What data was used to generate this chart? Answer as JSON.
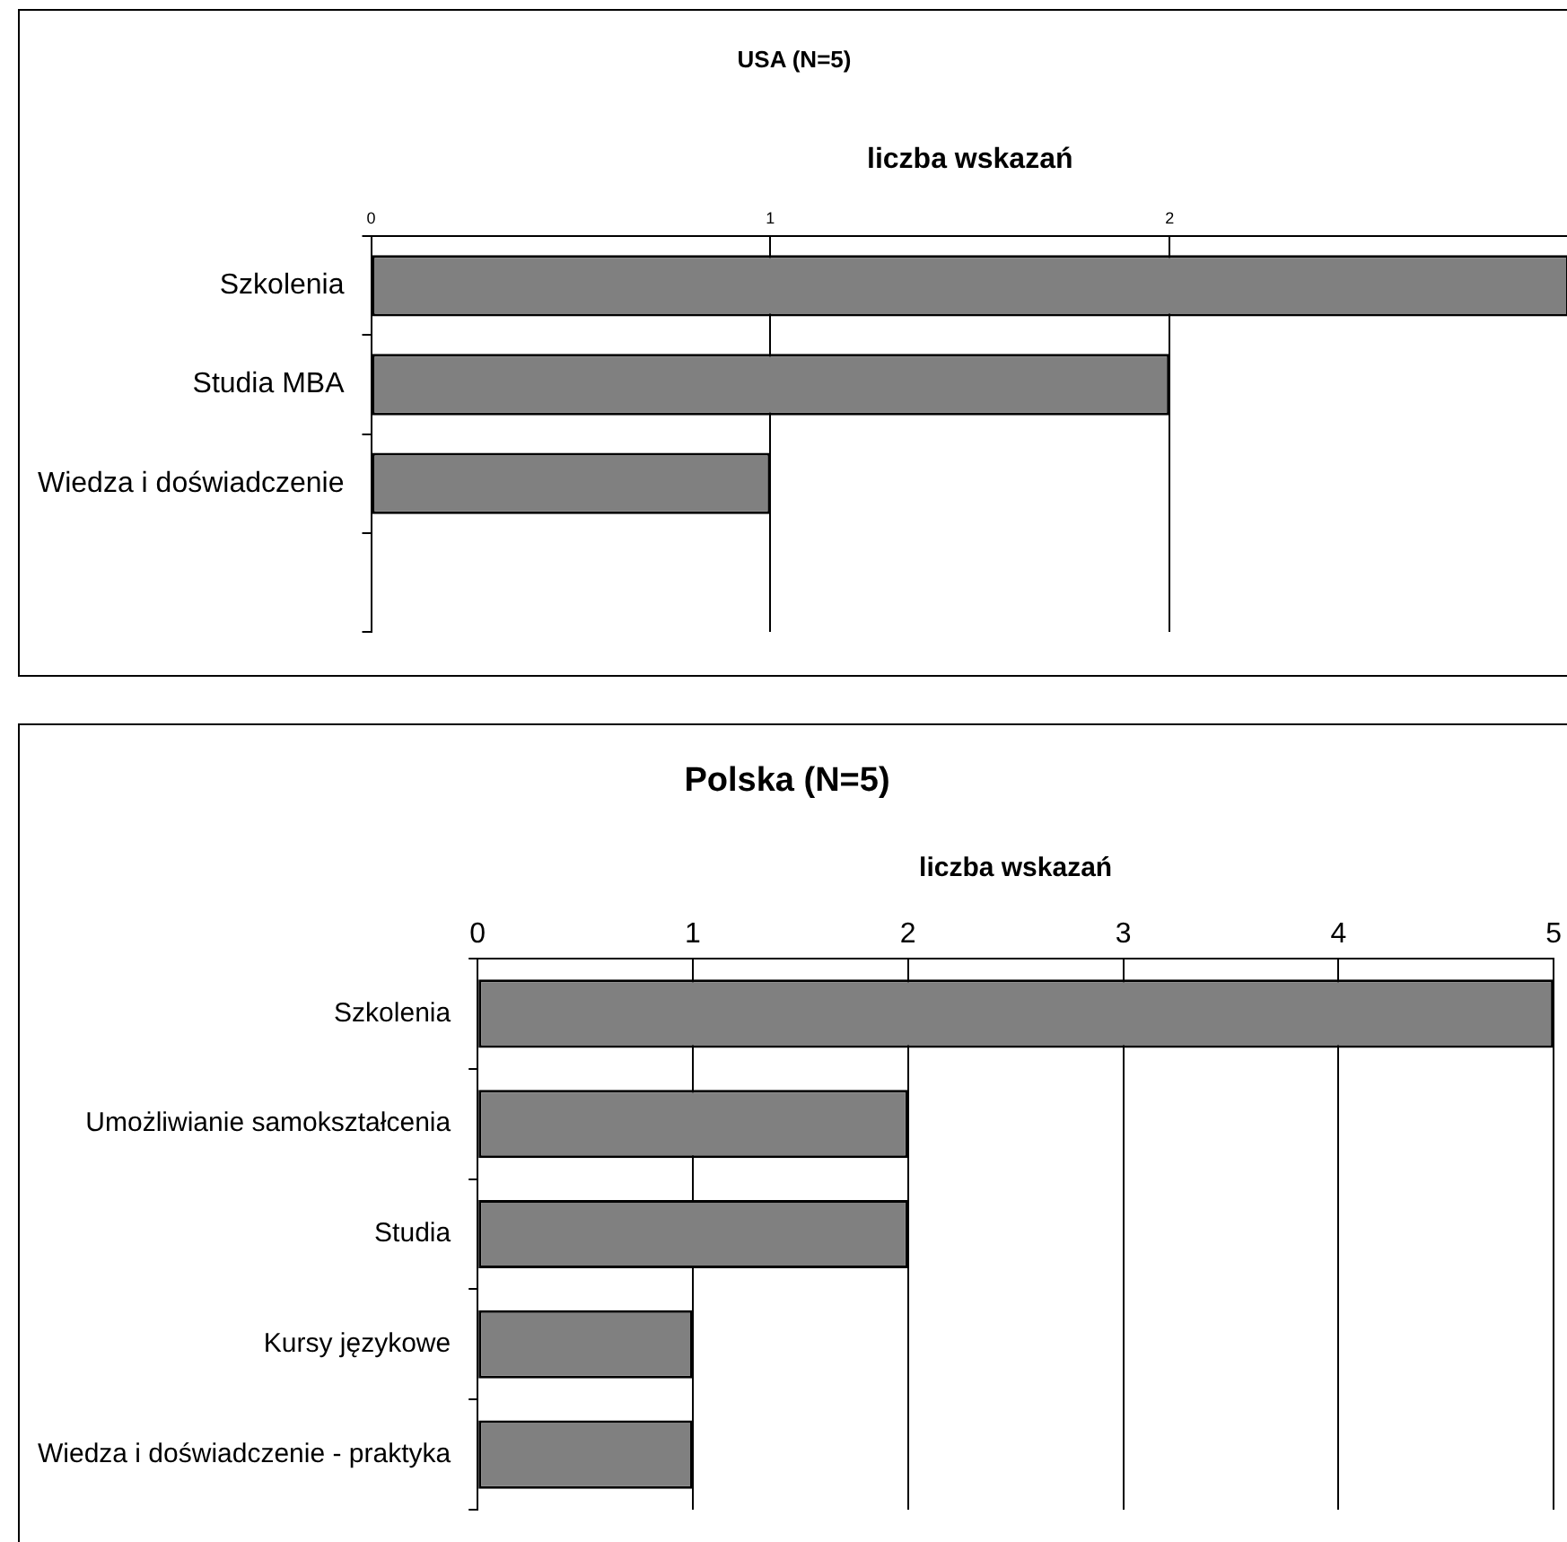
{
  "chart_data": [
    {
      "type": "bar",
      "orientation": "horizontal",
      "title": "USA (N=5)",
      "xlabel": "liczba wskazań",
      "categories": [
        "Szkolenia",
        "Studia MBA",
        "Wiedza i doświadczenie",
        null
      ],
      "values": [
        3,
        2,
        1,
        null
      ],
      "color": "#808080",
      "xlim": [
        0,
        3
      ],
      "xticks": [
        0,
        1,
        2
      ],
      "grid": "x",
      "legend": false
    },
    {
      "type": "bar",
      "orientation": "horizontal",
      "title": "Polska (N=5)",
      "xlabel": "liczba wskazań",
      "categories": [
        "Szkolenia",
        "Umożliwianie samokształcenia",
        "Studia",
        "Kursy językowe",
        "Wiedza i doświadczenie - praktyka"
      ],
      "values": [
        5,
        2,
        2,
        1,
        1
      ],
      "color": "#808080",
      "xlim": [
        0,
        5
      ],
      "xticks": [
        0,
        1,
        2,
        3,
        4,
        5
      ],
      "grid": "x",
      "legend": false
    }
  ]
}
